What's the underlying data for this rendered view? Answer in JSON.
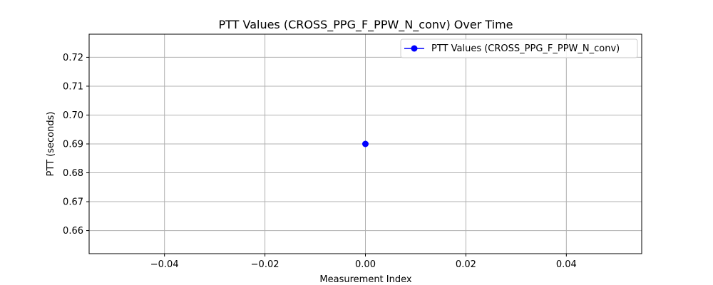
{
  "chart_data": {
    "type": "line",
    "title": "PTT Values (CROSS_PPG_F_PPW_N_conv) Over Time",
    "xlabel": "Measurement Index",
    "ylabel": "PTT (seconds)",
    "xlim": [
      -0.055,
      0.055
    ],
    "ylim": [
      0.652,
      0.728
    ],
    "xticks": [
      -0.04,
      -0.02,
      0.0,
      0.02,
      0.04
    ],
    "xtick_labels": [
      "−0.04",
      "−0.02",
      "0.00",
      "0.02",
      "0.04"
    ],
    "yticks": [
      0.66,
      0.67,
      0.68,
      0.69,
      0.7,
      0.71,
      0.72
    ],
    "ytick_labels": [
      "0.66",
      "0.67",
      "0.68",
      "0.69",
      "0.70",
      "0.71",
      "0.72"
    ],
    "grid": true,
    "legend_position": "top-right",
    "series": [
      {
        "name": "PTT Values (CROSS_PPG_F_PPW_N_conv)",
        "color": "#0000ff",
        "marker": "circle",
        "x": [
          0
        ],
        "y": [
          0.69
        ]
      }
    ]
  }
}
